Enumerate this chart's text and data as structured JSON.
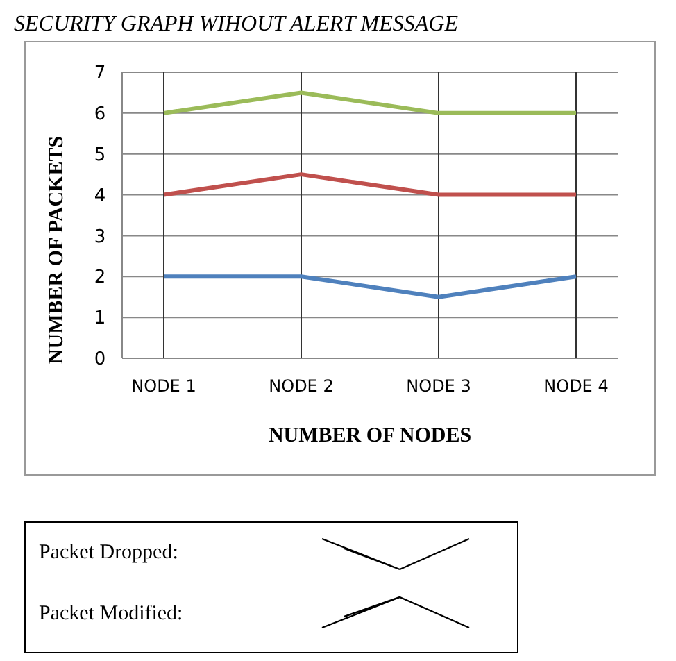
{
  "chart_data": {
    "type": "line",
    "title": "SECURITY GRAPH WIHOUT ALERT MESSAGE",
    "xlabel": "NUMBER OF NODES",
    "ylabel": "NUMBER OF PACKETS",
    "categories": [
      "NODE 1",
      "NODE 2",
      "NODE 3",
      "NODE 4"
    ],
    "series": [
      {
        "color": "#9bbb59",
        "values": [
          6,
          6.5,
          6,
          6
        ]
      },
      {
        "color": "#c0504d",
        "values": [
          4,
          4.5,
          4,
          4
        ]
      },
      {
        "color": "#4f81bd",
        "values": [
          2,
          2,
          1.5,
          2
        ]
      }
    ],
    "ylim": [
      0,
      7
    ],
    "yticks": [
      0,
      1,
      2,
      3,
      4,
      5,
      6,
      7
    ],
    "grid": true,
    "marker": "none",
    "line_style": "solid",
    "annotations": [
      "Packet Dropped:",
      "Packet Modified:"
    ]
  }
}
